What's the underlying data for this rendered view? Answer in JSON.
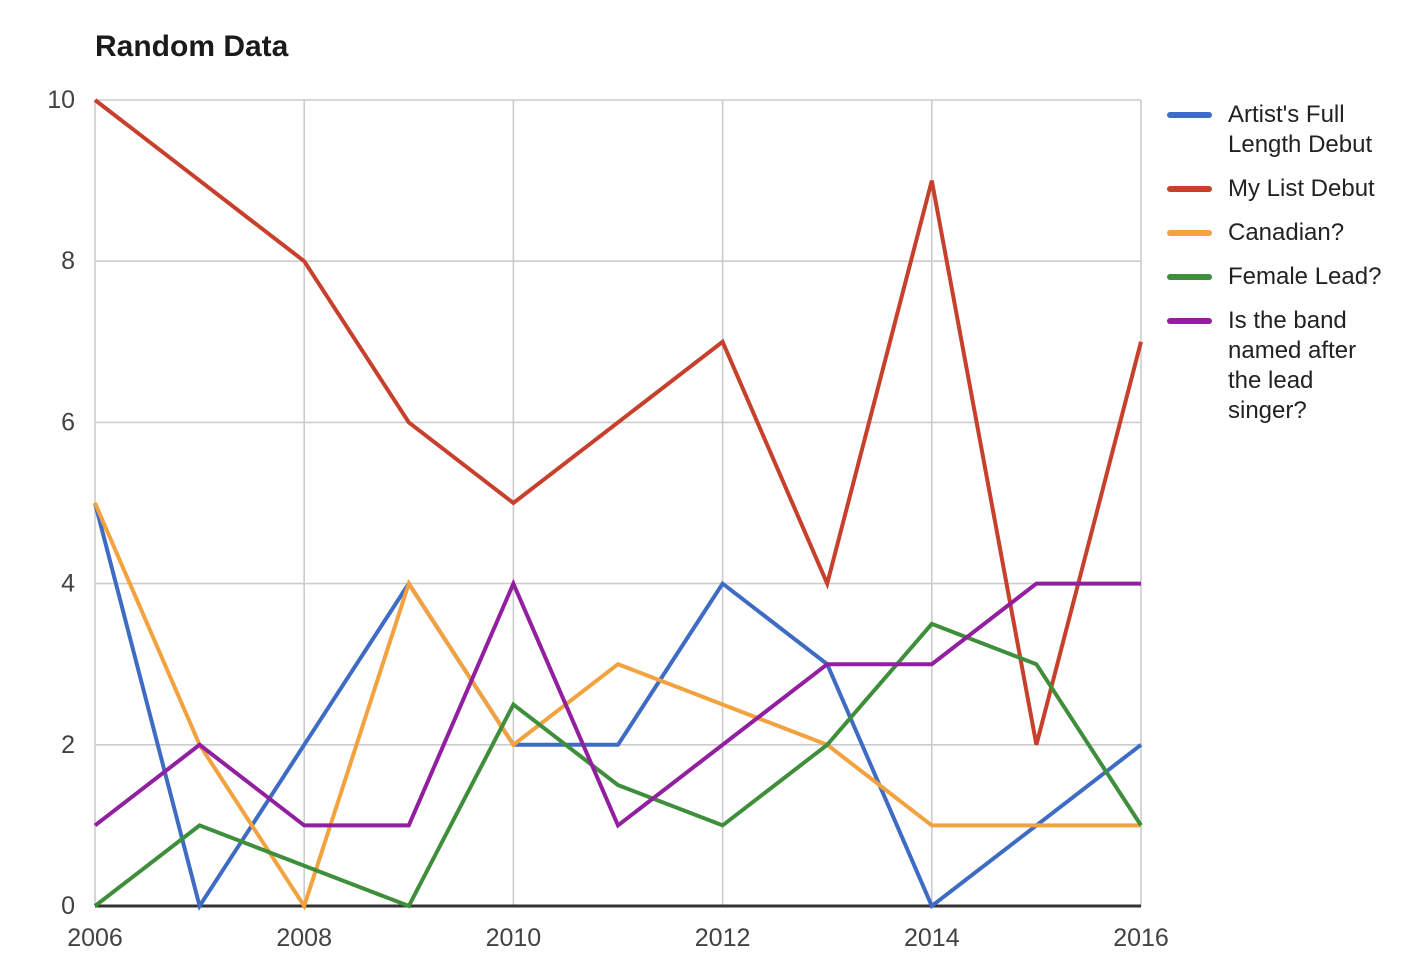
{
  "chart_data": {
    "type": "line",
    "title": "Random Data",
    "xlabel": "",
    "ylabel": "",
    "x": [
      2006,
      2007,
      2008,
      2009,
      2010,
      2011,
      2012,
      2013,
      2014,
      2015,
      2016
    ],
    "series": [
      {
        "name": "Artist's Full Length Debut",
        "color": "#3E6CC5",
        "values": [
          5,
          0,
          2,
          4,
          2,
          2,
          4,
          3,
          0,
          1,
          2
        ]
      },
      {
        "name": "My List Debut",
        "color": "#C7402C",
        "values": [
          10,
          9,
          8,
          6,
          5,
          6,
          7,
          4,
          9,
          2,
          7
        ]
      },
      {
        "name": "Canadian?",
        "color": "#F2A340",
        "values": [
          5,
          2,
          0,
          4,
          2,
          3,
          2.5,
          2,
          1,
          1,
          1
        ]
      },
      {
        "name": "Female Lead?",
        "color": "#3F8E3B",
        "values": [
          0,
          1,
          0.5,
          0,
          2.5,
          1.5,
          1,
          2,
          3.5,
          3,
          1
        ]
      },
      {
        "name": "Is the band named after the lead singer?",
        "color": "#911F9F",
        "values": [
          1,
          2,
          1,
          1,
          4,
          1,
          2,
          3,
          3,
          4,
          4
        ]
      }
    ],
    "xlim": [
      2006,
      2016
    ],
    "ylim": [
      0,
      10
    ],
    "xticks": [
      "2006",
      "2008",
      "2010",
      "2012",
      "2014",
      "2016"
    ],
    "xtick_values": [
      2006,
      2008,
      2010,
      2012,
      2014,
      2016
    ],
    "yticks": [
      "0",
      "2",
      "4",
      "6",
      "8",
      "10"
    ],
    "ytick_values": [
      0,
      2,
      4,
      6,
      8,
      10
    ],
    "grid": true,
    "legend_position": "right"
  },
  "legend": {
    "items": [
      {
        "label": "Artist's Full Length Debut",
        "lines": [
          "Artist's Full",
          "Length Debut"
        ]
      },
      {
        "label": "My List Debut",
        "lines": [
          "My List Debut"
        ]
      },
      {
        "label": "Canadian?",
        "lines": [
          "Canadian?"
        ]
      },
      {
        "label": "Female Lead?",
        "lines": [
          "Female Lead?"
        ]
      },
      {
        "label": "Is the band named after the lead singer?",
        "lines": [
          "Is the band",
          "named after",
          "the lead",
          "singer?"
        ]
      }
    ]
  },
  "style": {
    "grid_color": "#cccccc",
    "axis_color": "#333333",
    "tick_label_color": "#424242",
    "title_color": "#1a1a1a",
    "legend_text_color": "#222222",
    "background_color": "#ffffff"
  }
}
